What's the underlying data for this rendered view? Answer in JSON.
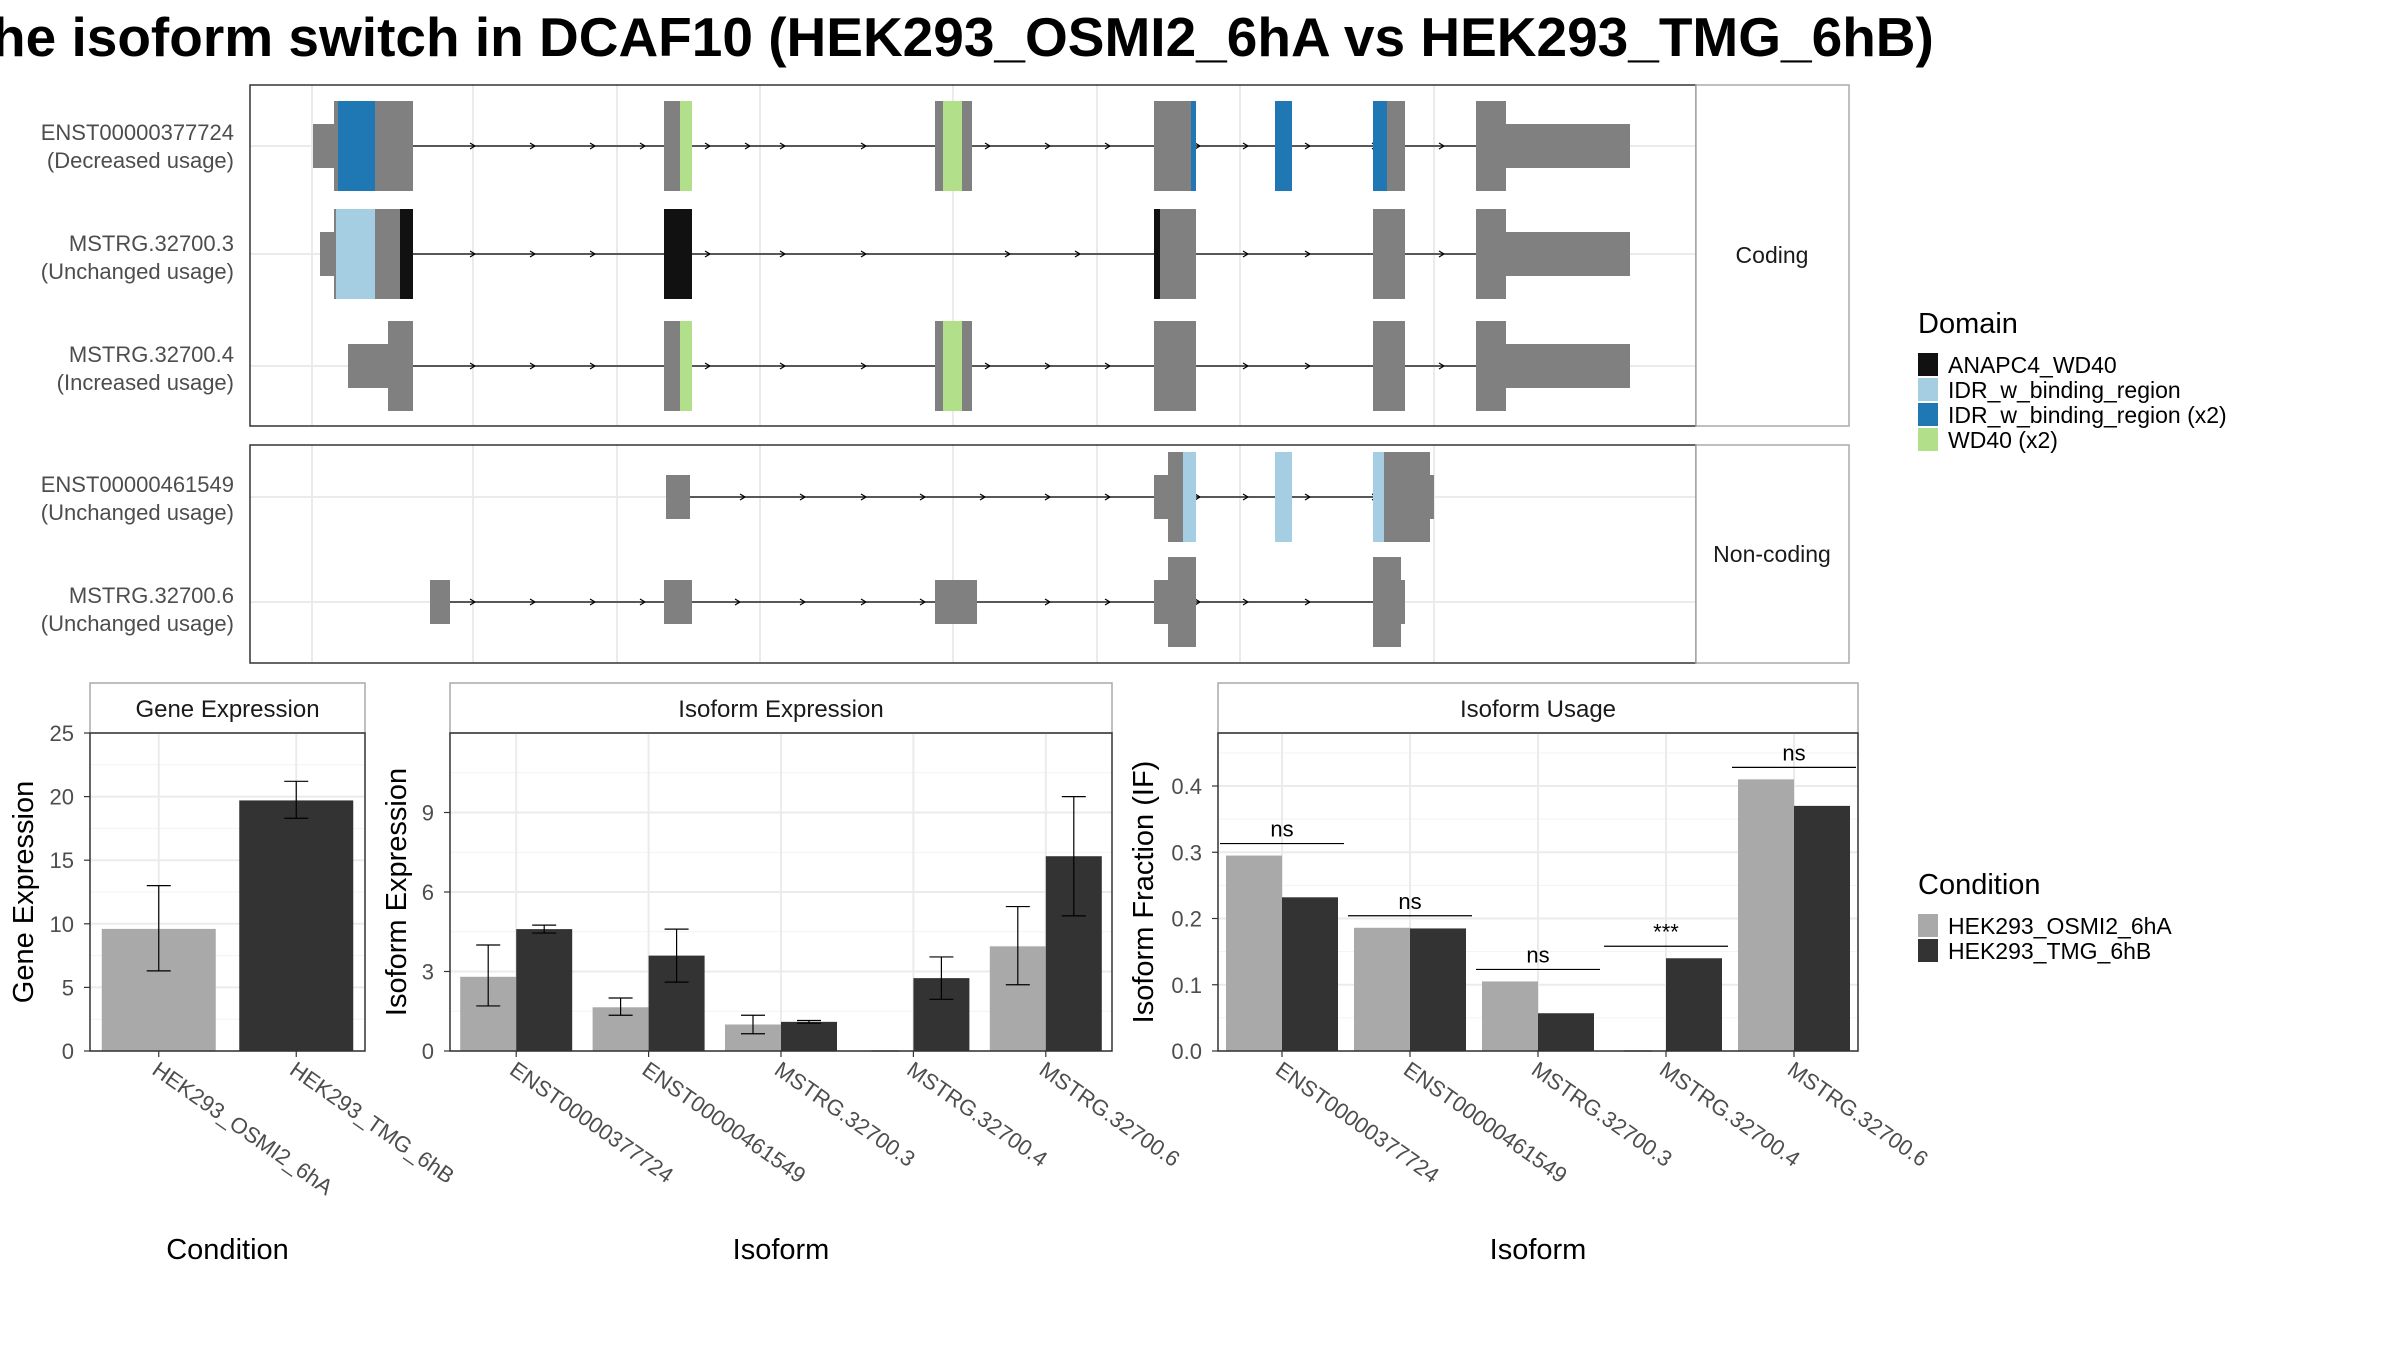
{
  "title": "he isoform switch in DCAF10 (HEK293_OSMI2_6hA vs HEK293_TMG_6hB)",
  "colors": {
    "exon": "#808080",
    "cond_a": "#A9A9A9",
    "cond_b": "#333333",
    "panel_border": "#333333",
    "strip_border": "#AAAAAA",
    "grid": "#EBEBEB"
  },
  "facet_labels": {
    "coding": "Coding",
    "noncoding": "Non-coding"
  },
  "transcripts": [
    {
      "id": "ENST00000377724",
      "usage": "(Decreased usage)",
      "group": "coding"
    },
    {
      "id": "MSTRG.32700.3",
      "usage": "(Unchanged usage)",
      "group": "coding"
    },
    {
      "id": "MSTRG.32700.4",
      "usage": "(Increased usage)",
      "group": "coding"
    },
    {
      "id": "ENST00000461549",
      "usage": "(Unchanged usage)",
      "group": "noncoding"
    },
    {
      "id": "MSTRG.32700.6",
      "usage": "(Unchanged usage)",
      "group": "noncoding"
    }
  ],
  "domain_legend": {
    "title": "Domain",
    "items": [
      {
        "label": "ANAPC4_WD40",
        "color": "#111111"
      },
      {
        "label": "IDR_w_binding_region",
        "color": "#A6CEE3"
      },
      {
        "label": "IDR_w_binding_region (x2)",
        "color": "#1F78B4"
      },
      {
        "label": "WD40 (x2)",
        "color": "#B2DF8A"
      }
    ]
  },
  "condition_legend": {
    "title": "Condition",
    "items": [
      {
        "label": "HEK293_OSMI2_6hA",
        "color": "#A9A9A9"
      },
      {
        "label": "HEK293_TMG_6hB",
        "color": "#333333"
      }
    ]
  },
  "chart_data": [
    {
      "type": "bar",
      "title": "Gene Expression",
      "xlabel": "Condition",
      "ylabel": "Gene Expression",
      "ylim": [
        0,
        25
      ],
      "yticks": [
        0,
        5,
        10,
        15,
        20,
        25
      ],
      "categories": [
        "HEK293_OSMI2_6hA",
        "HEK293_TMG_6hB"
      ],
      "values": [
        9.6,
        19.7
      ],
      "errors": [
        [
          6.3,
          13.0
        ],
        [
          18.3,
          21.2
        ]
      ],
      "colors": [
        "#A9A9A9",
        "#333333"
      ]
    },
    {
      "type": "bar",
      "title": "Isoform Expression",
      "xlabel": "Isoform",
      "ylabel": "Isoform Expression",
      "ylim": [
        0,
        12
      ],
      "yticks": [
        0,
        3,
        6,
        9
      ],
      "categories": [
        "ENST00000377724",
        "ENST00000461549",
        "MSTRG.32700.3",
        "MSTRG.32700.4",
        "MSTRG.32700.6"
      ],
      "series": [
        {
          "name": "HEK293_OSMI2_6hA",
          "values": [
            2.8,
            1.65,
            1.0,
            0.0,
            3.95
          ],
          "errors": [
            [
              1.7,
              4.0
            ],
            [
              1.35,
              2.0
            ],
            [
              0.65,
              1.35
            ],
            [
              0.0,
              0.0
            ],
            [
              2.5,
              5.45
            ]
          ]
        },
        {
          "name": "HEK293_TMG_6hB",
          "values": [
            4.6,
            3.6,
            1.1,
            2.75,
            7.35
          ],
          "errors": [
            [
              4.45,
              4.75
            ],
            [
              2.6,
              4.6
            ],
            [
              1.05,
              1.15
            ],
            [
              1.95,
              3.55
            ],
            [
              5.1,
              9.6
            ]
          ]
        }
      ]
    },
    {
      "type": "bar",
      "title": "Isoform Usage",
      "xlabel": "Isoform",
      "ylabel": "Isoform Fraction (IF)",
      "ylim": [
        0,
        0.48
      ],
      "yticks": [
        0.0,
        0.1,
        0.2,
        0.3,
        0.4
      ],
      "ytick_labels": [
        "0.0",
        "0.1",
        "0.2",
        "0.3",
        "0.4"
      ],
      "categories": [
        "ENST00000377724",
        "ENST00000461549",
        "MSTRG.32700.3",
        "MSTRG.32700.4",
        "MSTRG.32700.6"
      ],
      "series": [
        {
          "name": "HEK293_OSMI2_6hA",
          "values": [
            0.295,
            0.186,
            0.105,
            0.0,
            0.41
          ]
        },
        {
          "name": "HEK293_TMG_6hB",
          "values": [
            0.232,
            0.185,
            0.057,
            0.14,
            0.37
          ]
        }
      ],
      "significance": [
        "ns",
        "ns",
        "ns",
        "***",
        "ns"
      ]
    }
  ]
}
